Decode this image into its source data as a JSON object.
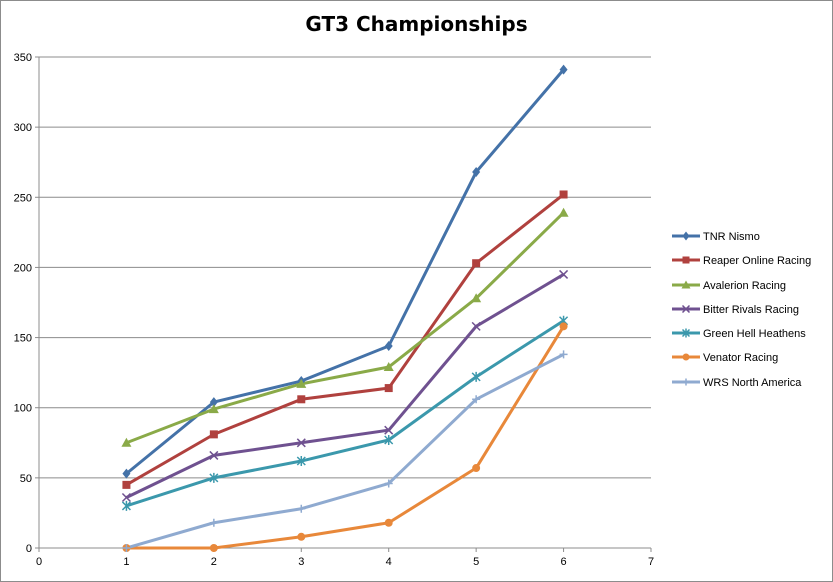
{
  "chart_data": {
    "type": "line",
    "title": "GT3 Championships",
    "xlabel": "",
    "ylabel": "",
    "xlim": [
      0,
      7
    ],
    "ylim": [
      0,
      350
    ],
    "x_ticks": [
      0,
      1,
      2,
      3,
      4,
      5,
      6,
      7
    ],
    "y_ticks": [
      0,
      50,
      100,
      150,
      200,
      250,
      300,
      350
    ],
    "grid": "horizontal",
    "legend_position": "right",
    "x": [
      1,
      2,
      3,
      4,
      5,
      6
    ],
    "series": [
      {
        "name": "TNR Nismo",
        "color": "#4472a8",
        "marker": "diamond",
        "values": [
          53,
          104,
          119,
          144,
          268,
          341
        ]
      },
      {
        "name": "Reaper Online Racing",
        "color": "#b0413e",
        "marker": "square",
        "values": [
          45,
          81,
          106,
          114,
          203,
          252
        ]
      },
      {
        "name": "Avalerion Racing",
        "color": "#8aaa48",
        "marker": "triangle",
        "values": [
          75,
          99,
          117,
          129,
          178,
          239
        ]
      },
      {
        "name": "Bitter Rivals Racing",
        "color": "#6f5190",
        "marker": "x",
        "values": [
          36,
          66,
          75,
          84,
          158,
          195
        ]
      },
      {
        "name": "Green Hell Heathens",
        "color": "#3b98ac",
        "marker": "star",
        "values": [
          30,
          50,
          62,
          77,
          122,
          162
        ]
      },
      {
        "name": "Venator Racing",
        "color": "#e8883a",
        "marker": "circle",
        "values": [
          0,
          0,
          8,
          18,
          57,
          158
        ]
      },
      {
        "name": "WRS North America",
        "color": "#8faad0",
        "marker": "plus",
        "values": [
          0,
          18,
          28,
          46,
          106,
          138
        ]
      }
    ]
  }
}
